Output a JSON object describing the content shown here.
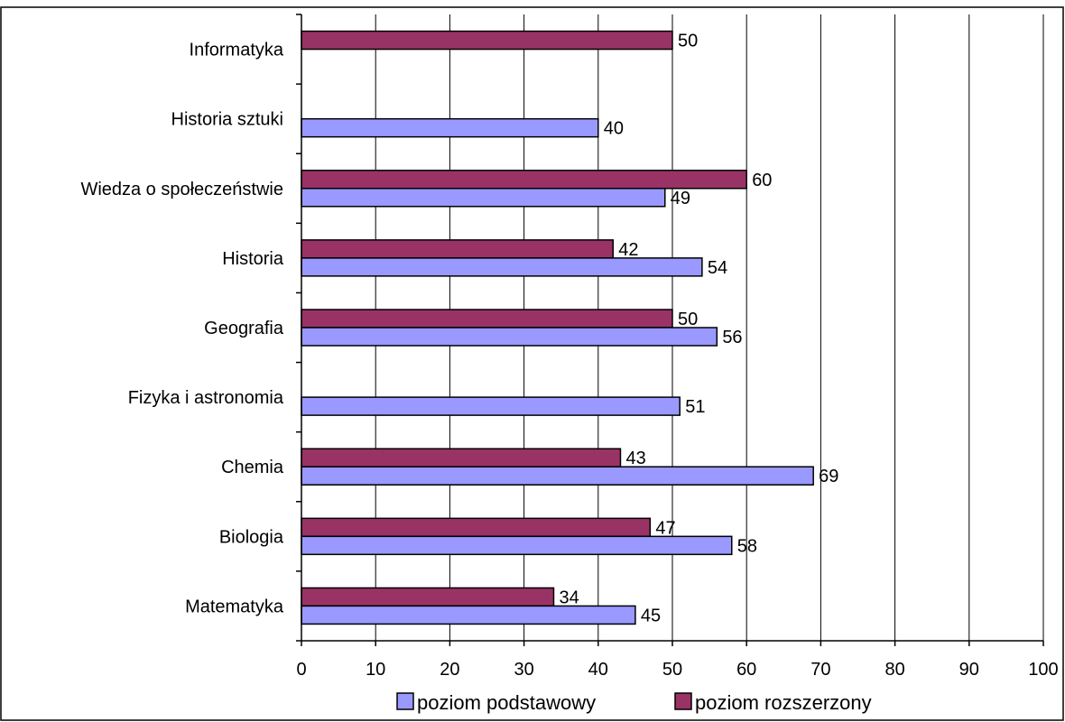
{
  "chart_data": {
    "type": "bar",
    "orientation": "horizontal",
    "categories": [
      "Matematyka",
      "Biologia",
      "Chemia",
      "Fizyka i astronomia",
      "Geografia",
      "Historia",
      "Wiedza o społeczeństwie",
      "Historia sztuki",
      "Informatyka"
    ],
    "series": [
      {
        "name": "poziom podstawowy",
        "values": [
          45,
          58,
          69,
          51,
          56,
          54,
          49,
          40,
          null
        ]
      },
      {
        "name": "poziom rozszerzony",
        "values": [
          34,
          47,
          43,
          null,
          50,
          42,
          60,
          null,
          50
        ]
      }
    ],
    "xlim": [
      0,
      100
    ],
    "x_ticks": [
      0,
      10,
      20,
      30,
      40,
      50,
      60,
      70,
      80,
      90,
      100
    ],
    "grid": "vertical",
    "legend_position": "bottom",
    "colors": {
      "poziom podstawowy": "#9999ff",
      "poziom rozszerzony": "#993366"
    }
  }
}
